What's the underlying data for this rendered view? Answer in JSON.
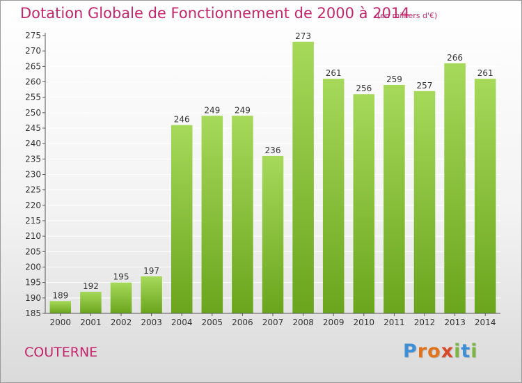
{
  "header": {
    "title": "Dotation Globale de Fonctionnement de 2000 à 2014",
    "subtitle": "(en milliers d'€)"
  },
  "footer": {
    "commune": "COUTERNE",
    "logo_text": "Proxiti",
    "logo_colors": [
      "#3f8fd6",
      "#e2731d",
      "#e2731d",
      "#d84a2a",
      "#7cb542",
      "#3f8fd6",
      "#7cb542"
    ]
  },
  "colors": {
    "title": "#c4256b",
    "bar_top": "#a6d95a",
    "bar_bottom": "#6aa51d",
    "grid": "#ffffff",
    "axis": "#555555",
    "text": "#333333"
  },
  "chart_data": {
    "type": "bar",
    "title": "Dotation Globale de Fonctionnement de 2000 à 2014",
    "subtitle": "(en milliers d'€)",
    "categories": [
      "2000",
      "2001",
      "2002",
      "2003",
      "2004",
      "2005",
      "2006",
      "2007",
      "2008",
      "2009",
      "2010",
      "2011",
      "2012",
      "2013",
      "2014"
    ],
    "values": [
      189,
      192,
      195,
      197,
      246,
      249,
      249,
      236,
      273,
      261,
      256,
      259,
      257,
      266,
      261
    ],
    "ylim": [
      185,
      275
    ],
    "yticks": [
      185,
      190,
      195,
      200,
      205,
      210,
      215,
      220,
      225,
      230,
      235,
      240,
      245,
      250,
      255,
      260,
      265,
      270,
      275
    ],
    "xlabel": "",
    "ylabel": "",
    "grid": true,
    "data_labels": true
  }
}
